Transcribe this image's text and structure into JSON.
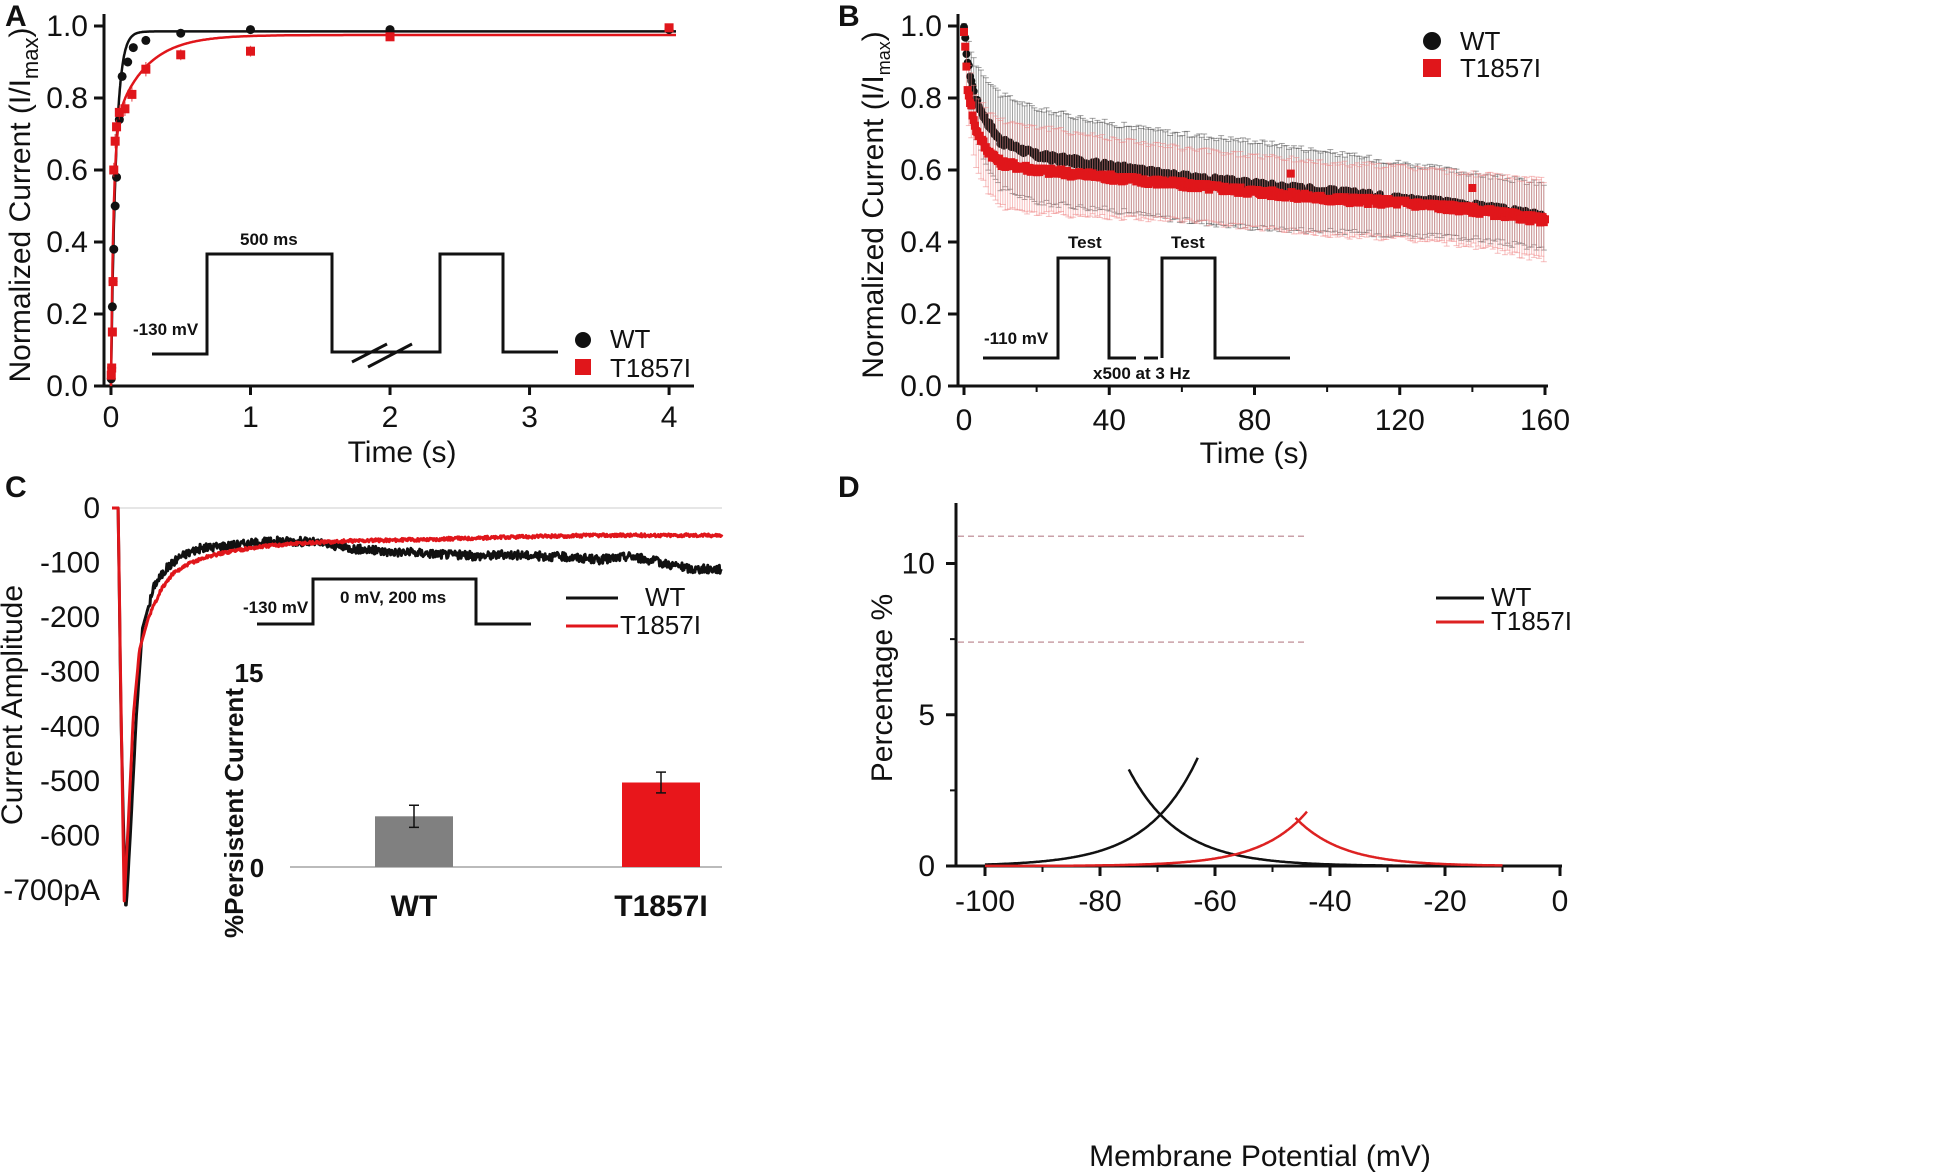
{
  "panels": {
    "A": {
      "label": "A",
      "chart_data": {
        "type": "scatter",
        "xlabel": "Time (s)",
        "ylabel": "Normalized Current (I/I",
        "ylabel_sub": "max",
        "ylabel_close": ")",
        "xlim": [
          -0.05,
          4.15
        ],
        "ylim": [
          0,
          1.0
        ],
        "xticks": [
          0,
          1,
          2,
          3,
          4
        ],
        "yticks": [
          0.0,
          0.2,
          0.4,
          0.6,
          0.8,
          1.0
        ],
        "xtick_labels": [
          "0",
          "1",
          "2",
          "3",
          "4"
        ],
        "ytick_labels": [
          "0.0",
          "0.2",
          "0.4",
          "0.6",
          "0.8",
          "1.0"
        ],
        "series": [
          {
            "name": "WT",
            "color": "#111111",
            "marker": "circle",
            "x": [
              0.002,
              0.005,
              0.01,
              0.015,
              0.02,
              0.03,
              0.04,
              0.06,
              0.08,
              0.12,
              0.16,
              0.25,
              0.5,
              1.0,
              2.0,
              4.0
            ],
            "y": [
              0.02,
              0.05,
              0.22,
              0.29,
              0.38,
              0.5,
              0.58,
              0.74,
              0.86,
              0.9,
              0.94,
              0.96,
              0.98,
              0.99,
              0.99,
              0.99
            ],
            "err": [
              0.01,
              0.01,
              0.01,
              0.01,
              0.01,
              0.01,
              0.01,
              0.01,
              0.01,
              0.01,
              0.01,
              0.01,
              0.005,
              0.005,
              0.005,
              0.005
            ],
            "fit": {
              "tau": 0.035,
              "plateau": 0.985
            }
          },
          {
            "name": "T1857I",
            "color": "#e0161b",
            "marker": "square",
            "x": [
              0.002,
              0.005,
              0.01,
              0.015,
              0.02,
              0.03,
              0.04,
              0.06,
              0.1,
              0.15,
              0.25,
              0.5,
              1.0,
              2.0,
              4.0
            ],
            "y": [
              0.03,
              0.05,
              0.15,
              0.29,
              0.6,
              0.68,
              0.72,
              0.76,
              0.77,
              0.81,
              0.88,
              0.92,
              0.93,
              0.97,
              0.995
            ],
            "err": [
              0.01,
              0.01,
              0.01,
              0.02,
              0.02,
              0.02,
              0.02,
              0.02,
              0.02,
              0.02,
              0.02,
              0.015,
              0.015,
              0.01,
              0.005
            ],
            "fit": {
              "tau_fast": 0.018,
              "amp_fast": 0.7,
              "tau_slow": 0.22,
              "plateau": 0.975
            }
          }
        ],
        "legend": {
          "position": "bottom-right",
          "entries": [
            "WT",
            "T1857I"
          ]
        }
      },
      "inset": {
        "holding": "-130 mV",
        "duration": "500 ms"
      }
    },
    "B": {
      "label": "B",
      "chart_data": {
        "type": "scatter",
        "xlabel": "Time (s)",
        "ylabel": "Normalized Current (I/I",
        "ylabel_sub": "max",
        "ylabel_close": ")",
        "xlim": [
          -1.5,
          161
        ],
        "ylim": [
          0,
          1.0
        ],
        "xticks": [
          0,
          40,
          80,
          120,
          160
        ],
        "xtick_labels": [
          "0",
          "40",
          "80",
          "120",
          "160"
        ],
        "yticks": [
          0.0,
          0.2,
          0.4,
          0.6,
          0.8,
          1.0
        ],
        "ytick_labels": [
          "0.0",
          "0.2",
          "0.4",
          "0.6",
          "0.8",
          "1.0"
        ],
        "series": [
          {
            "name": "WT",
            "color": "#111111",
            "marker": "circle",
            "anchor_x": [
              0,
              1,
              3,
              6,
              10,
              20,
              40,
              60,
              80,
              100,
              120,
              140,
              160
            ],
            "anchor_y": [
              0.99,
              0.9,
              0.8,
              0.74,
              0.68,
              0.64,
              0.61,
              0.58,
              0.56,
              0.54,
              0.52,
              0.5,
              0.47
            ],
            "anchor_err": [
              0.01,
              0.06,
              0.1,
              0.12,
              0.13,
              0.13,
              0.12,
              0.12,
              0.12,
              0.11,
              0.1,
              0.09,
              0.09
            ]
          },
          {
            "name": "T1857I",
            "color": "#e0161b",
            "marker": "square",
            "anchor_x": [
              0,
              1,
              3,
              6,
              10,
              20,
              40,
              60,
              80,
              100,
              120,
              140,
              160
            ],
            "anchor_y": [
              0.99,
              0.83,
              0.72,
              0.66,
              0.62,
              0.6,
              0.58,
              0.56,
              0.54,
              0.52,
              0.51,
              0.49,
              0.46
            ],
            "anchor_err": [
              0.01,
              0.08,
              0.1,
              0.11,
              0.12,
              0.12,
              0.11,
              0.1,
              0.1,
              0.1,
              0.1,
              0.1,
              0.11
            ],
            "outliers": [
              [
                90,
                0.59
              ],
              [
                140,
                0.55
              ]
            ]
          }
        ],
        "legend": {
          "position": "top-right",
          "entries": [
            "WT",
            "T1857I"
          ]
        }
      },
      "inset": {
        "holding": "-110 mV",
        "test1": "Test",
        "test2": "Test",
        "protocol": "x500 at 3 Hz"
      }
    },
    "C": {
      "label": "C",
      "chart_data": {
        "type": "line",
        "xlabel": "",
        "ylabel": "Current Amplitude",
        "ylim": [
          -700,
          0
        ],
        "yticks": [
          0,
          -100,
          -200,
          -300,
          -400,
          -500,
          -600,
          -700
        ],
        "ytick_labels": [
          "0",
          "-100",
          "-200",
          "-300",
          "-400",
          "-500",
          "-600",
          "-700pA"
        ],
        "xlim_ms": [
          0,
          200
        ],
        "series": [
          {
            "name": "WT",
            "color": "#111111",
            "anchor_t": [
              0,
              2,
              3,
              4.5,
              6,
              8,
              10,
              14,
              18,
              22,
              28,
              35,
              45,
              55,
              65,
              80,
              90,
              100,
              110,
              120,
              130,
              140,
              150,
              160,
              170,
              180,
              190,
              200
            ],
            "anchor_v": [
              0,
              0,
              -400,
              -750,
              -600,
              -380,
              -220,
              -140,
              -110,
              -90,
              -75,
              -70,
              -65,
              -60,
              -62,
              -75,
              -80,
              -82,
              -85,
              -88,
              -85,
              -88,
              -90,
              -95,
              -88,
              -100,
              -112,
              -112
            ]
          },
          {
            "name": "T1857I",
            "color": "#e0161b",
            "anchor_t": [
              0,
              2,
              3,
              4,
              5.5,
              7,
              9,
              12,
              16,
              20,
              26,
              32,
              40,
              50,
              60,
              80,
              100,
              120,
              140,
              160,
              180,
              200
            ],
            "anchor_v": [
              0,
              0,
              -380,
              -720,
              -560,
              -380,
              -260,
              -200,
              -150,
              -120,
              -100,
              -88,
              -78,
              -70,
              -65,
              -60,
              -58,
              -55,
              -52,
              -50,
              -50,
              -50
            ]
          }
        ],
        "legend": {
          "position": "right",
          "entries": [
            "WT",
            "T1857I"
          ]
        }
      },
      "inset": {
        "holding": "-130 mV",
        "step": "0 mV, 200 ms"
      },
      "bar_chart": {
        "type": "bar",
        "ylabel": "%Persistent Current",
        "ylim": [
          0,
          15
        ],
        "ytick_labels": [
          "0",
          "15"
        ],
        "categories": [
          "WT",
          "T1857I"
        ],
        "values": [
          3.9,
          6.5
        ],
        "errors": [
          0.85,
          0.8
        ],
        "colors": [
          "#808080",
          "#e8161b"
        ]
      }
    },
    "D": {
      "label": "D",
      "chart_data": {
        "type": "line",
        "xlabel": "Membrane Potential (mV)",
        "ylabel": "Percentage %",
        "xlim": [
          -105,
          0
        ],
        "ylim": [
          0,
          12
        ],
        "xticks": [
          -100,
          -80,
          -60,
          -40,
          -20,
          0
        ],
        "xtick_labels": [
          "-100",
          "-80",
          "-60",
          "-40",
          "-20",
          "0"
        ],
        "yticks": [
          0,
          5,
          10
        ],
        "ytick_labels": [
          "0",
          "5",
          "10"
        ],
        "reference_lines": [
          7.4,
          10.9
        ],
        "series": [
          {
            "name": "WT",
            "color": "#111111",
            "activation": {
              "v_half": -35,
              "k": 8.5,
              "x_range": [
                -100,
                -63
              ]
            },
            "inactivation": {
              "v_half": -104,
              "k": 8.5,
              "x_range": [
                -75,
                0
              ]
            }
          },
          {
            "name": "T1857I",
            "color": "#dd2222",
            "activation": {
              "v_half": -12,
              "k": 8.0,
              "x_range": [
                -100,
                -44
              ]
            },
            "inactivation": {
              "v_half": -79,
              "k": 8.0,
              "x_range": [
                -46,
                -10
              ]
            }
          }
        ],
        "legend": {
          "position": "right",
          "entries": [
            "WT",
            "T1857I"
          ]
        }
      }
    }
  }
}
